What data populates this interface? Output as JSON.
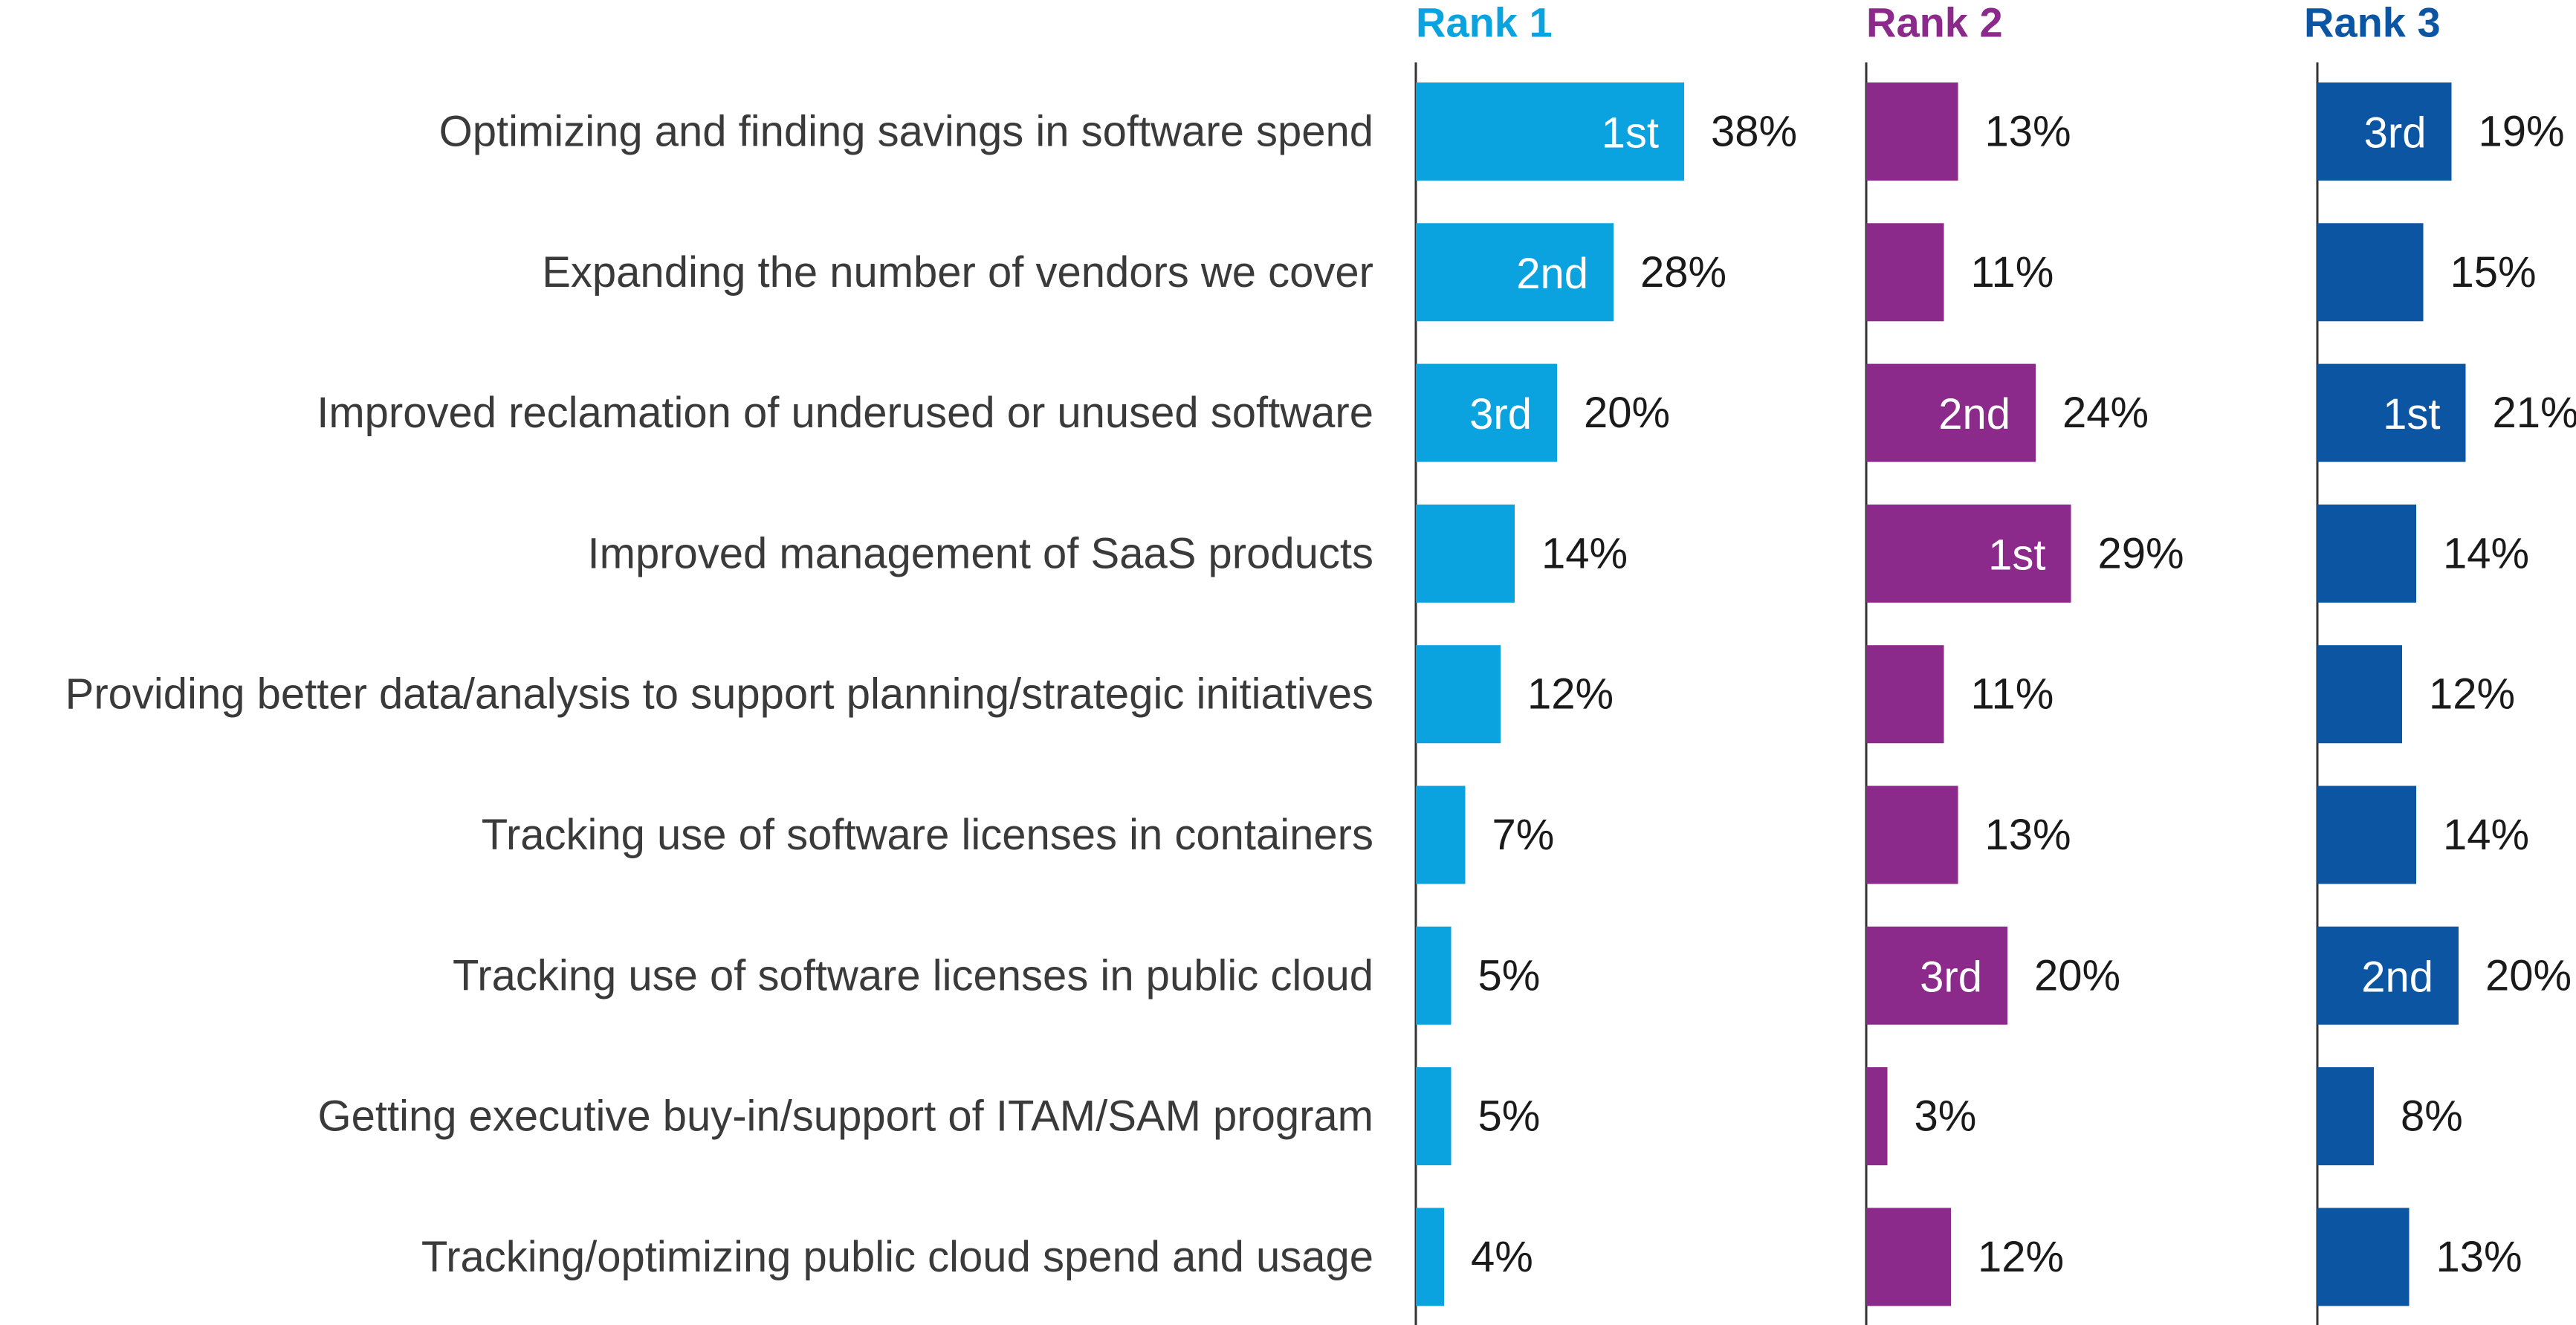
{
  "chart_data": {
    "type": "bar",
    "orientation": "horizontal",
    "categories": [
      "Optimizing and finding savings in software spend",
      "Expanding the number of vendors we cover",
      "Improved reclamation of underused or unused software",
      "Improved management of SaaS products",
      "Providing better data/analysis to support planning/strategic initiatives",
      "Tracking use of software licenses in containers",
      "Tracking use of software licenses in public cloud",
      "Getting executive buy-in/support of ITAM/SAM program",
      "Tracking/optimizing public cloud spend and usage"
    ],
    "series": [
      {
        "name": "Rank 1",
        "color": "#0aa3df",
        "values": [
          38,
          28,
          20,
          14,
          12,
          7,
          5,
          5,
          4
        ],
        "value_labels": [
          "38%",
          "28%",
          "20%",
          "14%",
          "12%",
          "7%",
          "5%",
          "5%",
          "4%"
        ],
        "rank_tags": [
          "1st",
          "2nd",
          "3rd",
          "",
          "",
          "",
          "",
          "",
          ""
        ]
      },
      {
        "name": "Rank 2",
        "color": "#8b2a8b",
        "values": [
          13,
          11,
          24,
          29,
          11,
          13,
          20,
          3,
          12
        ],
        "value_labels": [
          "13%",
          "11%",
          "24%",
          "29%",
          "11%",
          "13%",
          "20%",
          "3%",
          "12%"
        ],
        "rank_tags": [
          "",
          "",
          "2nd",
          "1st",
          "",
          "",
          "3rd",
          "",
          ""
        ]
      },
      {
        "name": "Rank 3",
        "color": "#0b55a3",
        "values": [
          19,
          15,
          21,
          14,
          12,
          14,
          20,
          8,
          13
        ],
        "value_labels": [
          "19%",
          "15%",
          "21%",
          "14%",
          "12%",
          "14%",
          "20%",
          "8%",
          "13%"
        ],
        "rank_tags": [
          "3rd",
          "",
          "1st",
          "",
          "",
          "",
          "2nd",
          "",
          ""
        ]
      }
    ]
  }
}
